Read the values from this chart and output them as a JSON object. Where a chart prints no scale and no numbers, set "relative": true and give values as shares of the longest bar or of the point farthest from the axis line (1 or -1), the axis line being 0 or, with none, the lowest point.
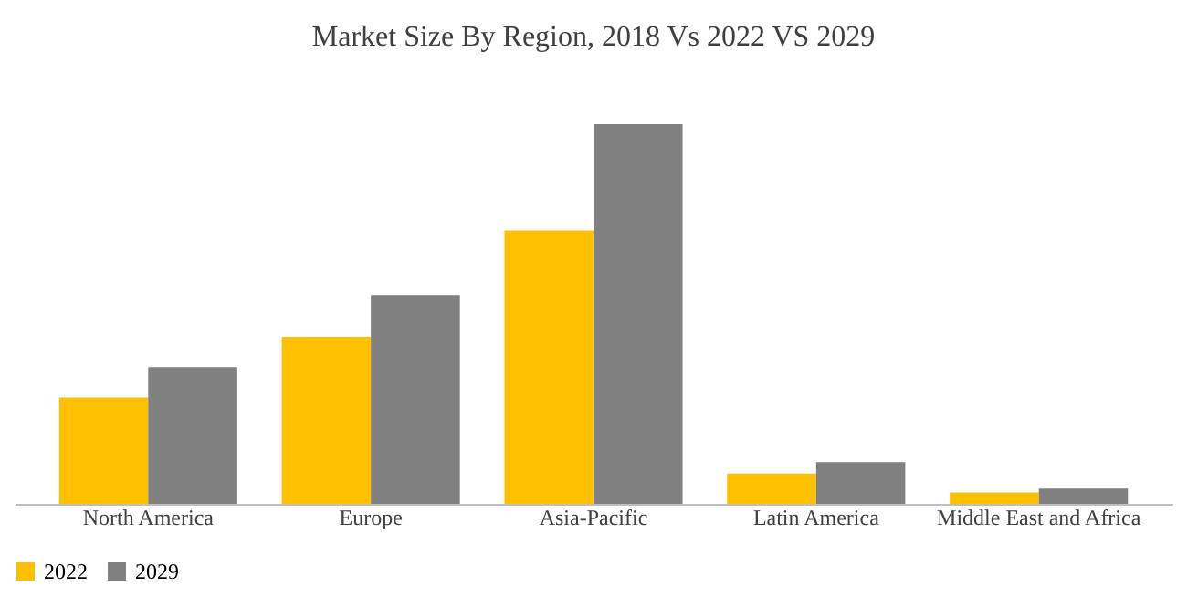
{
  "chart_data": {
    "type": "bar",
    "title": "Market Size By Region, 2018 Vs 2022 VS 2029",
    "relative": true,
    "categories": [
      "North America",
      "Europe",
      "Asia-Pacific",
      "Latin America",
      "Middle East and Africa"
    ],
    "series": [
      {
        "name": "2022",
        "color": "#ffc000",
        "values": [
          0.28,
          0.44,
          0.72,
          0.08,
          0.03
        ]
      },
      {
        "name": "2029",
        "color": "#808080",
        "values": [
          0.36,
          0.55,
          1,
          0.11,
          0.04
        ]
      }
    ],
    "legend": "bottom",
    "grid": false
  }
}
